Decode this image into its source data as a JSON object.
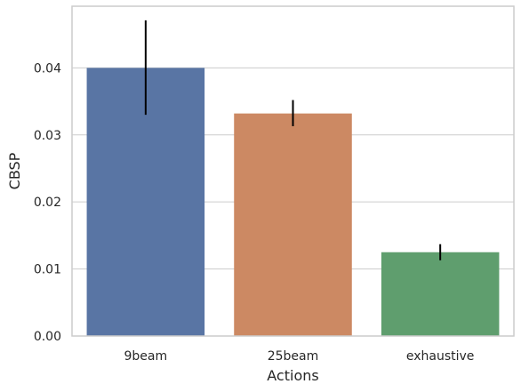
{
  "chart_data": {
    "type": "bar",
    "title": "",
    "xlabel": "Actions",
    "ylabel": "CBSP",
    "categories": [
      "9beam",
      "25beam",
      "exhaustive"
    ],
    "values": [
      0.04,
      0.0332,
      0.0125
    ],
    "error_bars": [
      {
        "low": 0.033,
        "high": 0.0471
      },
      {
        "low": 0.0313,
        "high": 0.0352
      },
      {
        "low": 0.0113,
        "high": 0.0137
      }
    ],
    "ylim": [
      0,
      0.0492
    ],
    "yticks": [
      "0.00",
      "0.01",
      "0.02",
      "0.03",
      "0.04"
    ],
    "ytick_values": [
      0,
      0.01,
      0.02,
      0.03,
      0.04
    ],
    "grid": "horizontal",
    "legend": "none",
    "colors": [
      "#5975a4",
      "#cc8963",
      "#5f9e6e"
    ],
    "error_color": "#000000",
    "grid_color": "#cccccc",
    "spine_color": "#cccccc"
  }
}
